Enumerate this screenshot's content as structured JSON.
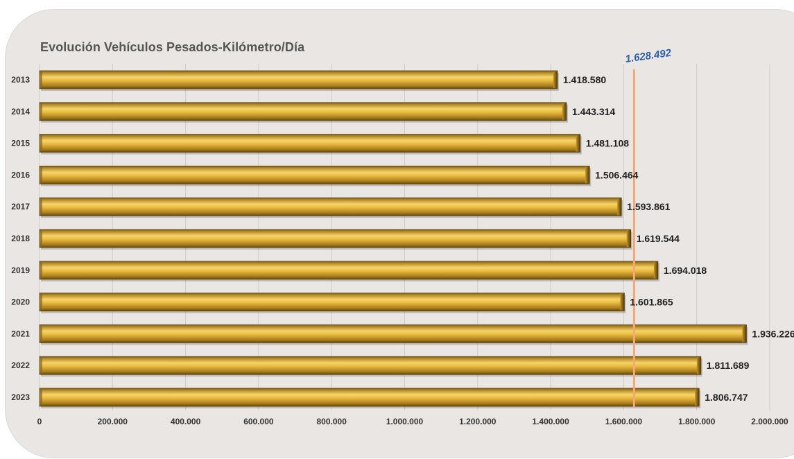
{
  "chart_data": {
    "type": "bar",
    "orientation": "horizontal",
    "title": "Evolución Vehículos Pesados-Kilómetro/Día",
    "categories": [
      "2013",
      "2014",
      "2015",
      "2016",
      "2017",
      "2018",
      "2019",
      "2020",
      "2021",
      "2022",
      "2023"
    ],
    "values": [
      1418580,
      1443314,
      1481108,
      1506464,
      1593861,
      1619544,
      1694018,
      1601865,
      1936226,
      1811689,
      1806747
    ],
    "value_labels": [
      "1.418.580",
      "1.443.314",
      "1.481.108",
      "1.506.464",
      "1.593.861",
      "1.619.544",
      "1.694.018",
      "1.601.865",
      "1.936.226",
      "1.811.689",
      "1.806.747"
    ],
    "xlim": [
      0,
      2000000
    ],
    "x_ticks": [
      0,
      200000,
      400000,
      600000,
      800000,
      1000000,
      1200000,
      1400000,
      1600000,
      1800000,
      2000000
    ],
    "x_tick_labels": [
      "0",
      "200.000",
      "400.000",
      "600.000",
      "800.000",
      "1.000.000",
      "1.200.000",
      "1.400.000",
      "1.600.000",
      "1.800.000",
      "2.000.000"
    ],
    "reference_line": {
      "value": 1628492,
      "label": "1.628.492",
      "color": "#f4a878"
    },
    "grid": true,
    "bar_color": "#e8b93e",
    "background_color": "#e9e6e4"
  }
}
